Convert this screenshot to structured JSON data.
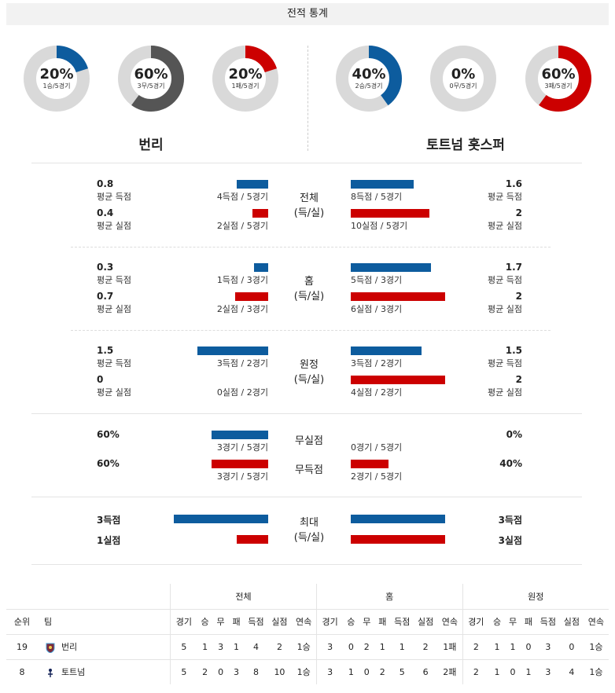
{
  "header": {
    "title": "전적 통계"
  },
  "colors": {
    "win": "#0d5c9e",
    "draw": "#555555",
    "loss": "#cc0000",
    "track": "#d9d9d9"
  },
  "left_team": {
    "name": "번리",
    "donuts": [
      {
        "pct": "20%",
        "sub": "1승/5경기",
        "value": 20,
        "color": "#0d5c9e"
      },
      {
        "pct": "60%",
        "sub": "3무/5경기",
        "value": 60,
        "color": "#555555"
      },
      {
        "pct": "20%",
        "sub": "1패/5경기",
        "value": 20,
        "color": "#cc0000"
      }
    ]
  },
  "right_team": {
    "name": "토트넘 홋스퍼",
    "donuts": [
      {
        "pct": "40%",
        "sub": "2승/5경기",
        "value": 40,
        "color": "#0d5c9e"
      },
      {
        "pct": "0%",
        "sub": "0무/5경기",
        "value": 0,
        "color": "#555555"
      },
      {
        "pct": "60%",
        "sub": "3패/5경기",
        "value": 60,
        "color": "#cc0000"
      }
    ]
  },
  "sections": {
    "total": {
      "title1": "전체",
      "title2": "(득/실)",
      "left": {
        "scored_avg": "0.8",
        "scored_avg_label": "평균 득점",
        "scored_detail": "4득점 / 5경기",
        "scored_share": 0.33,
        "conceded_avg": "0.4",
        "conceded_avg_label": "평균 실점",
        "conceded_detail": "2실점 / 5경기",
        "conceded_share": 0.17
      },
      "right": {
        "scored_avg": "1.6",
        "scored_avg_label": "평균 득점",
        "scored_detail": "8득점 / 5경기",
        "scored_share": 0.67,
        "conceded_avg": "2",
        "conceded_avg_label": "평균 실점",
        "conceded_detail": "10실점 / 5경기",
        "conceded_share": 0.83
      }
    },
    "home": {
      "title1": "홈",
      "title2": "(득/실)",
      "left": {
        "scored_avg": "0.3",
        "scored_avg_label": "평균 득점",
        "scored_detail": "1득점 / 3경기",
        "scored_share": 0.15,
        "conceded_avg": "0.7",
        "conceded_avg_label": "평균 실점",
        "conceded_detail": "2실점 / 3경기",
        "conceded_share": 0.35
      },
      "right": {
        "scored_avg": "1.7",
        "scored_avg_label": "평균 득점",
        "scored_detail": "5득점 / 3경기",
        "scored_share": 0.85,
        "conceded_avg": "2",
        "conceded_avg_label": "평균 실점",
        "conceded_detail": "6실점 / 3경기",
        "conceded_share": 1.0
      }
    },
    "away": {
      "title1": "원정",
      "title2": "(득/실)",
      "left": {
        "scored_avg": "1.5",
        "scored_avg_label": "평균 득점",
        "scored_detail": "3득점 / 2경기",
        "scored_share": 0.75,
        "conceded_avg": "0",
        "conceded_avg_label": "평균 실점",
        "conceded_detail": "0실점 / 2경기",
        "conceded_share": 0.0
      },
      "right": {
        "scored_avg": "1.5",
        "scored_avg_label": "평균 득점",
        "scored_detail": "3득점 / 2경기",
        "scored_share": 0.75,
        "conceded_avg": "2",
        "conceded_avg_label": "평균 실점",
        "conceded_detail": "4실점 / 2경기",
        "conceded_share": 1.0
      }
    },
    "clean": {
      "title_clean": "무실점",
      "title_noscore": "무득점",
      "left": {
        "clean_pct": "60%",
        "clean_detail": "3경기 / 5경기",
        "clean_share": 0.6,
        "noscore_pct": "60%",
        "noscore_detail": "3경기 / 5경기",
        "noscore_share": 0.6
      },
      "right": {
        "clean_pct": "0%",
        "clean_detail": "0경기 / 5경기",
        "clean_share": 0.0,
        "noscore_pct": "40%",
        "noscore_detail": "2경기 / 5경기",
        "noscore_share": 0.4
      }
    },
    "max": {
      "title1": "최대",
      "title2": "(득/실)",
      "left": {
        "max_scored": "3득점",
        "max_scored_share": 1.0,
        "max_conceded": "1실점",
        "max_conceded_share": 0.33
      },
      "right": {
        "max_scored": "3득점",
        "max_scored_share": 1.0,
        "max_conceded": "3실점",
        "max_conceded_share": 1.0
      }
    }
  },
  "table": {
    "group_headers": [
      "전체",
      "홈",
      "원정"
    ],
    "rank_header": "순위",
    "team_header": "팀",
    "stat_headers": [
      "경기",
      "승",
      "무",
      "패",
      "득점",
      "실점",
      "연속"
    ],
    "rows": [
      {
        "rank": "19",
        "team": "번리",
        "crest": "burnley-crest-icon",
        "total": [
          "5",
          "1",
          "3",
          "1",
          "4",
          "2",
          "1승"
        ],
        "home": [
          "3",
          "0",
          "2",
          "1",
          "1",
          "2",
          "1패"
        ],
        "away": [
          "2",
          "1",
          "1",
          "0",
          "3",
          "0",
          "1승"
        ]
      },
      {
        "rank": "8",
        "team": "토트넘",
        "crest": "tottenham-crest-icon",
        "total": [
          "5",
          "2",
          "0",
          "3",
          "8",
          "10",
          "1승"
        ],
        "home": [
          "3",
          "1",
          "0",
          "2",
          "5",
          "6",
          "2패"
        ],
        "away": [
          "2",
          "1",
          "0",
          "1",
          "3",
          "4",
          "1승"
        ]
      }
    ]
  }
}
